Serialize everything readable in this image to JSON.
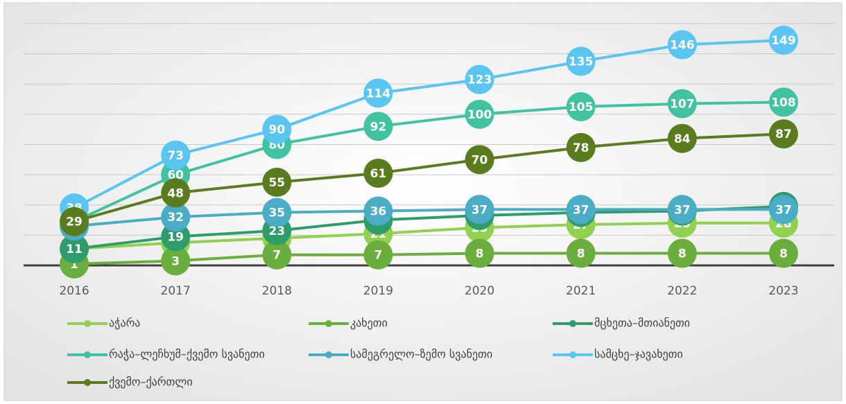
{
  "chart_data": {
    "type": "line",
    "categories": [
      "2016",
      "2017",
      "2018",
      "2019",
      "2020",
      "2021",
      "2022",
      "2023"
    ],
    "ylim": [
      0,
      160
    ],
    "yticks": [
      0,
      20,
      40,
      60,
      80,
      100,
      120,
      140,
      160
    ],
    "grid": true,
    "series": [
      {
        "name": "აჭარა",
        "color": "#92d050",
        "values": [
          11,
          15,
          18,
          21,
          25,
          27,
          28,
          28
        ]
      },
      {
        "name": "კახეთი",
        "color": "#6aaf3d",
        "values": [
          1,
          3,
          7,
          7,
          8,
          8,
          8,
          8
        ]
      },
      {
        "name": "მცხეთა–მთიანეთი",
        "color": "#2e9d6b",
        "values": [
          11,
          19,
          23,
          30,
          33,
          35,
          36,
          39
        ]
      },
      {
        "name": "რაჭა–ლეჩხუმ–ქვემო სვანეთი",
        "color": "#41c3a2",
        "values": [
          29,
          60,
          80,
          92,
          100,
          105,
          107,
          108
        ]
      },
      {
        "name": "სამეგრელო–ზემო სვანეთი",
        "color": "#4bacc6",
        "values": [
          26,
          32,
          35,
          36,
          37,
          37,
          37,
          37
        ]
      },
      {
        "name": "სამცხე–ჯავახეთი",
        "color": "#5bc5f2",
        "values": [
          38,
          73,
          90,
          114,
          123,
          135,
          146,
          149
        ]
      },
      {
        "name": "ქვემო–ქართლი",
        "color": "#5b7b1f",
        "values": [
          29,
          48,
          55,
          61,
          70,
          78,
          84,
          87
        ]
      }
    ],
    "legend": "bottom"
  }
}
